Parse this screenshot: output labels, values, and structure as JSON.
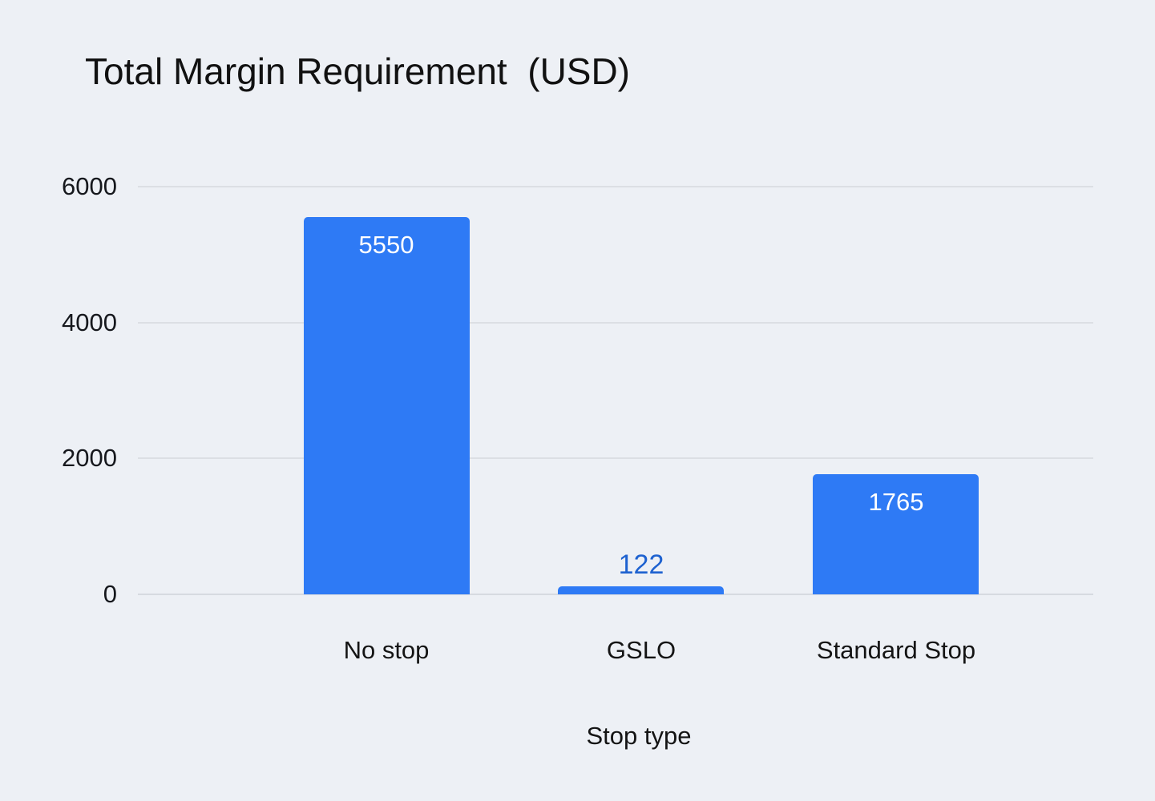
{
  "page": {
    "background_color": "#edf0f5"
  },
  "chart_data": {
    "type": "bar",
    "title": "Total Margin Requirement  (USD)",
    "xlabel": "Stop type",
    "ylabel": "",
    "categories": [
      "No stop",
      "GSLO",
      "Standard Stop"
    ],
    "values": [
      5550,
      122,
      1765
    ],
    "value_labels": [
      "5550",
      "122",
      "1765"
    ],
    "value_label_placement": [
      "inside",
      "outside",
      "inside"
    ],
    "ylim": [
      0,
      6000
    ],
    "yticks": [
      0,
      2000,
      4000,
      6000
    ],
    "grid": true,
    "legend": false,
    "colors": {
      "bar_fill": "#2e7af5",
      "value_label_inside": "#ffffff",
      "value_label_outside": "#1e62d0",
      "gridline": "#dcdfe4",
      "axis_line": "#d6dae0",
      "text": "#141414"
    }
  }
}
